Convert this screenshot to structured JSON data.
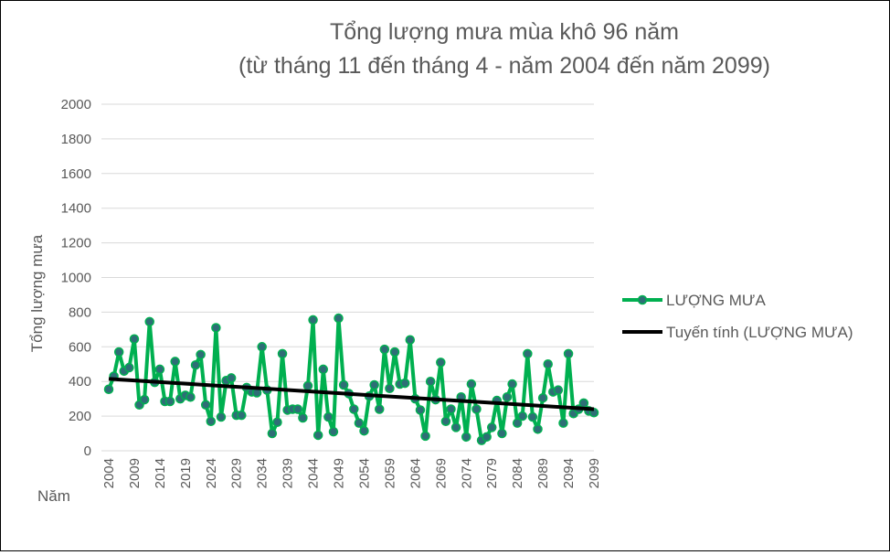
{
  "chart_data": {
    "type": "line",
    "title": "Tổng lượng mưa mùa khô 96 năm",
    "subtitle": "(từ tháng 11 đến tháng 4 - năm 2004 đến năm 2099)",
    "ylabel": "Tổng lượng mưa",
    "xlabel": "Năm",
    "ylim": [
      0,
      2000
    ],
    "yticks": [
      0,
      200,
      400,
      600,
      800,
      1000,
      1200,
      1400,
      1600,
      1800,
      2000
    ],
    "xtick_labels": [
      "2004",
      "2009",
      "2014",
      "2019",
      "2024",
      "2029",
      "2034",
      "2039",
      "2044",
      "2049",
      "2054",
      "2059",
      "2064",
      "2069",
      "2074",
      "2079",
      "2084",
      "2089",
      "2094",
      "2099"
    ],
    "grid": true,
    "legend_position": "right",
    "x_start": 2004,
    "series": [
      {
        "name": "LƯỢNG MƯA",
        "color": "#00b050",
        "marker_color": "#2e6e76",
        "values": [
          355,
          430,
          570,
          460,
          480,
          645,
          265,
          295,
          745,
          395,
          470,
          285,
          285,
          515,
          300,
          320,
          310,
          495,
          555,
          265,
          170,
          710,
          195,
          405,
          420,
          205,
          205,
          365,
          340,
          335,
          600,
          350,
          100,
          165,
          560,
          235,
          240,
          240,
          190,
          375,
          755,
          90,
          470,
          195,
          110,
          765,
          380,
          330,
          240,
          160,
          115,
          315,
          380,
          240,
          585,
          360,
          570,
          385,
          390,
          640,
          300,
          235,
          85,
          400,
          295,
          510,
          170,
          240,
          135,
          310,
          80,
          385,
          240,
          60,
          80,
          135,
          290,
          100,
          310,
          385,
          160,
          200,
          560,
          195,
          125,
          305,
          500,
          340,
          350,
          160,
          560,
          215,
          240,
          275,
          230,
          220
        ]
      },
      {
        "name": "Tuyến tính (LƯỢNG MƯA)",
        "type": "trendline",
        "color": "#000000",
        "values": [
          415,
          240
        ]
      }
    ]
  }
}
